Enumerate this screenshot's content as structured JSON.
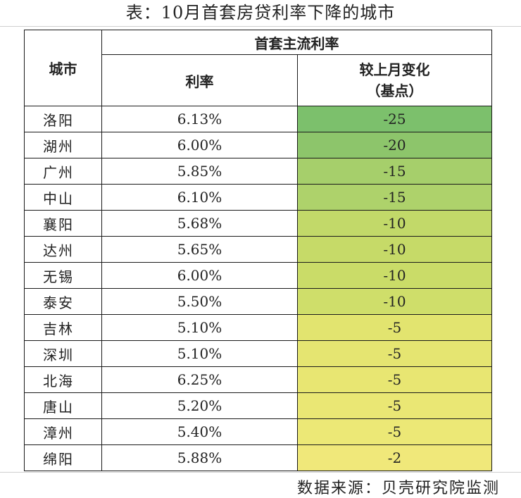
{
  "title": "表：10月首套房贷利率下降的城市",
  "header": {
    "city": "城市",
    "group": "首套主流利率",
    "rate": "利率",
    "change_line1": "较上月变化",
    "change_line2": "（基点）"
  },
  "rows": [
    {
      "city": "洛阳",
      "rate": "6.13%",
      "change": "-25",
      "color": "#7cc06c"
    },
    {
      "city": "湖州",
      "rate": "6.00%",
      "change": "-20",
      "color": "#8dc56b"
    },
    {
      "city": "广州",
      "rate": "5.85%",
      "change": "-15",
      "color": "#a6cf6b"
    },
    {
      "city": "中山",
      "rate": "6.10%",
      "change": "-15",
      "color": "#aed26b"
    },
    {
      "city": "襄阳",
      "rate": "5.68%",
      "change": "-10",
      "color": "#c2d969"
    },
    {
      "city": "达州",
      "rate": "5.65%",
      "change": "-10",
      "color": "#c6da68"
    },
    {
      "city": "无锡",
      "rate": "6.00%",
      "change": "-10",
      "color": "#cadc68"
    },
    {
      "city": "泰安",
      "rate": "5.50%",
      "change": "-10",
      "color": "#cfde6a"
    },
    {
      "city": "吉林",
      "rate": "5.10%",
      "change": "-5",
      "color": "#e2e46f"
    },
    {
      "city": "深圳",
      "rate": "5.10%",
      "change": "-5",
      "color": "#e5e571"
    },
    {
      "city": "北海",
      "rate": "6.25%",
      "change": "-5",
      "color": "#e8e672"
    },
    {
      "city": "唐山",
      "rate": "5.20%",
      "change": "-5",
      "color": "#eae774"
    },
    {
      "city": "漳州",
      "rate": "5.40%",
      "change": "-5",
      "color": "#ece876"
    },
    {
      "city": "绵阳",
      "rate": "5.88%",
      "change": "-2",
      "color": "#f0e87a"
    }
  ],
  "footer": "数据来源：贝壳研究院监测"
}
